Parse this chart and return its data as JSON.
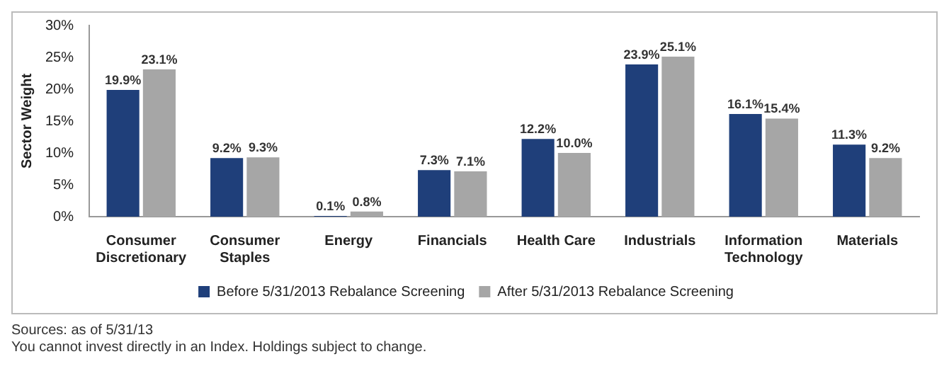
{
  "chart_data": {
    "type": "bar",
    "ylabel": "Sector Weight",
    "categories": [
      "Consumer Discretionary",
      "Consumer Staples",
      "Energy",
      "Financials",
      "Health Care",
      "Industrials",
      "Information Technology",
      "Materials"
    ],
    "series": [
      {
        "name": "Before 5/31/2013 Rebalance Screening",
        "color": "#1f3f7a",
        "values": [
          19.9,
          9.2,
          0.1,
          7.3,
          12.2,
          23.9,
          16.1,
          11.3
        ],
        "value_labels": [
          "19.9%",
          "9.2%",
          "0.1%",
          "7.3%",
          "12.2%",
          "23.9%",
          "16.1%",
          "11.3%"
        ]
      },
      {
        "name": "After 5/31/2013 Rebalance Screening",
        "color": "#a6a6a6",
        "values": [
          23.1,
          9.3,
          0.8,
          7.1,
          10.0,
          25.1,
          15.4,
          9.2
        ],
        "value_labels": [
          "23.1%",
          "9.3%",
          "0.8%",
          "7.1%",
          "10.0%",
          "25.1%",
          "15.4%",
          "9.2%"
        ]
      }
    ],
    "ylim": [
      0,
      30
    ],
    "yticks": [
      {
        "value": 0,
        "label": "0%"
      },
      {
        "value": 5,
        "label": "5%"
      },
      {
        "value": 10,
        "label": "10%"
      },
      {
        "value": 15,
        "label": "15%"
      },
      {
        "value": 20,
        "label": "20%"
      },
      {
        "value": 25,
        "label": "25%"
      },
      {
        "value": 30,
        "label": "30%"
      }
    ],
    "legend": "bottom",
    "annotations": [
      "Sources: as of 5/31/13",
      "You cannot invest directly in an Index. Holdings subject to change."
    ]
  }
}
